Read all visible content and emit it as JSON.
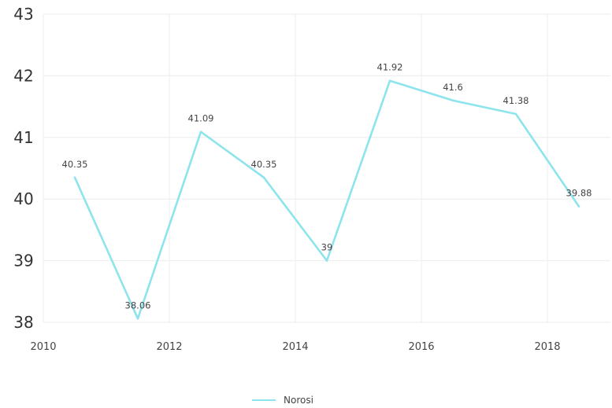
{
  "chart_data": {
    "type": "line",
    "xlim": [
      2010,
      2019
    ],
    "ylim": [
      38,
      43
    ],
    "x_ticks": [
      2010,
      2012,
      2014,
      2016,
      2018
    ],
    "y_ticks": [
      38,
      39,
      40,
      41,
      42,
      43
    ],
    "grid": true,
    "legend_position": "bottom",
    "series": [
      {
        "name": "Norosi",
        "color": "#8ee4ec",
        "x": [
          2010.5,
          2011.5,
          2012.5,
          2013.5,
          2014.5,
          2015.5,
          2016.5,
          2017.5,
          2018.5
        ],
        "y": [
          40.35,
          38.06,
          41.09,
          40.35,
          39,
          41.92,
          41.6,
          41.38,
          39.88
        ],
        "labels": [
          "40.35",
          "38.06",
          "41.09",
          "40.35",
          "39",
          "41.92",
          "41.6",
          "41.38",
          "39.88"
        ]
      }
    ]
  }
}
